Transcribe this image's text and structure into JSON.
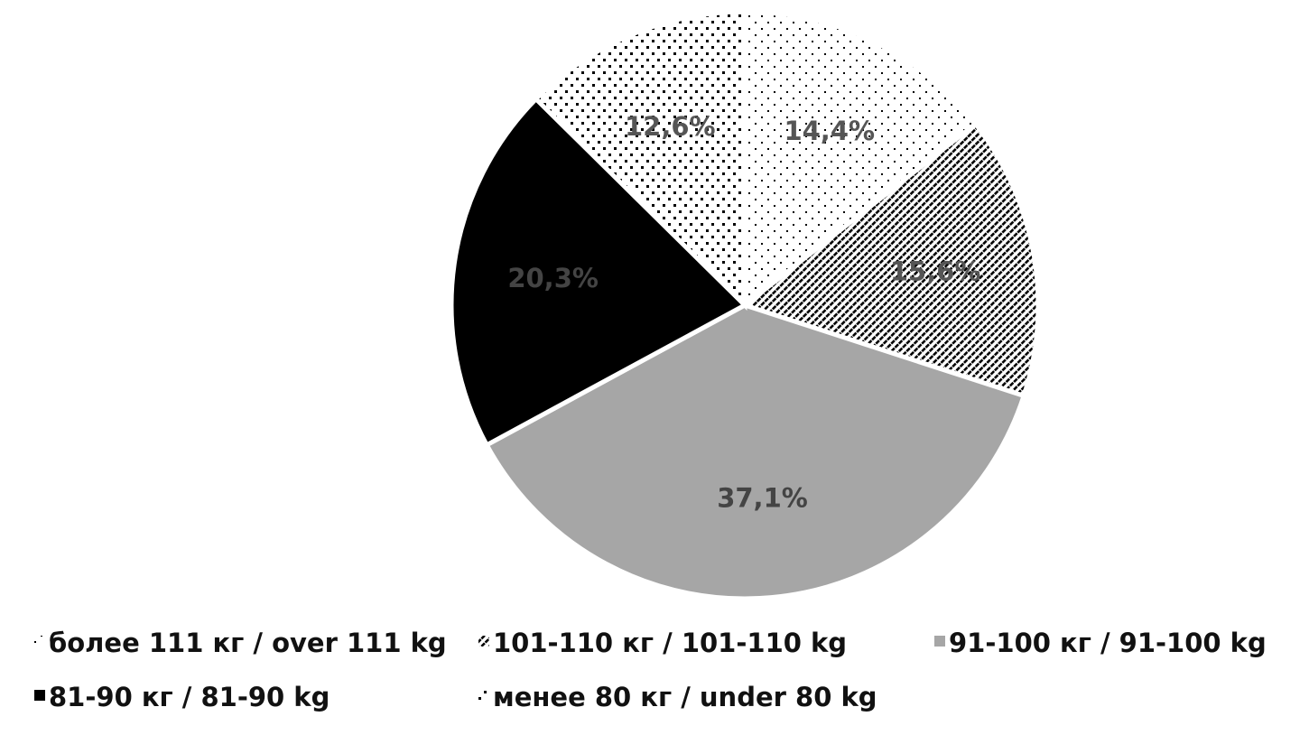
{
  "chart_data": {
    "type": "pie",
    "title": "",
    "slices": [
      {
        "label": "более 111 кг / over 111 kg",
        "value": 14.4,
        "value_label": "14,4%",
        "fill": "dots-fine",
        "label_color": "#555555"
      },
      {
        "label": "101-110 кг / 101-110 kg",
        "value": 15.6,
        "value_label": "15,6%",
        "fill": "hatch-diagonal",
        "label_color": "#555555"
      },
      {
        "label": "91-100 кг / 91-100 kg",
        "value": 37.1,
        "value_label": "37,1%",
        "fill": "solid-gray",
        "label_color": "#444444"
      },
      {
        "label": "81-90 кг / 81-90 kg",
        "value": 20.3,
        "value_label": "20,3%",
        "fill": "solid-black",
        "label_color": "#444444"
      },
      {
        "label": "менее 80 кг / under 80 kg",
        "value": 12.6,
        "value_label": "12,6%",
        "fill": "dots-coarse",
        "label_color": "#555555"
      }
    ],
    "legend_position": "bottom",
    "colors": {
      "gray": "#a6a6a6",
      "black": "#000000",
      "pattern": "#000000"
    }
  }
}
